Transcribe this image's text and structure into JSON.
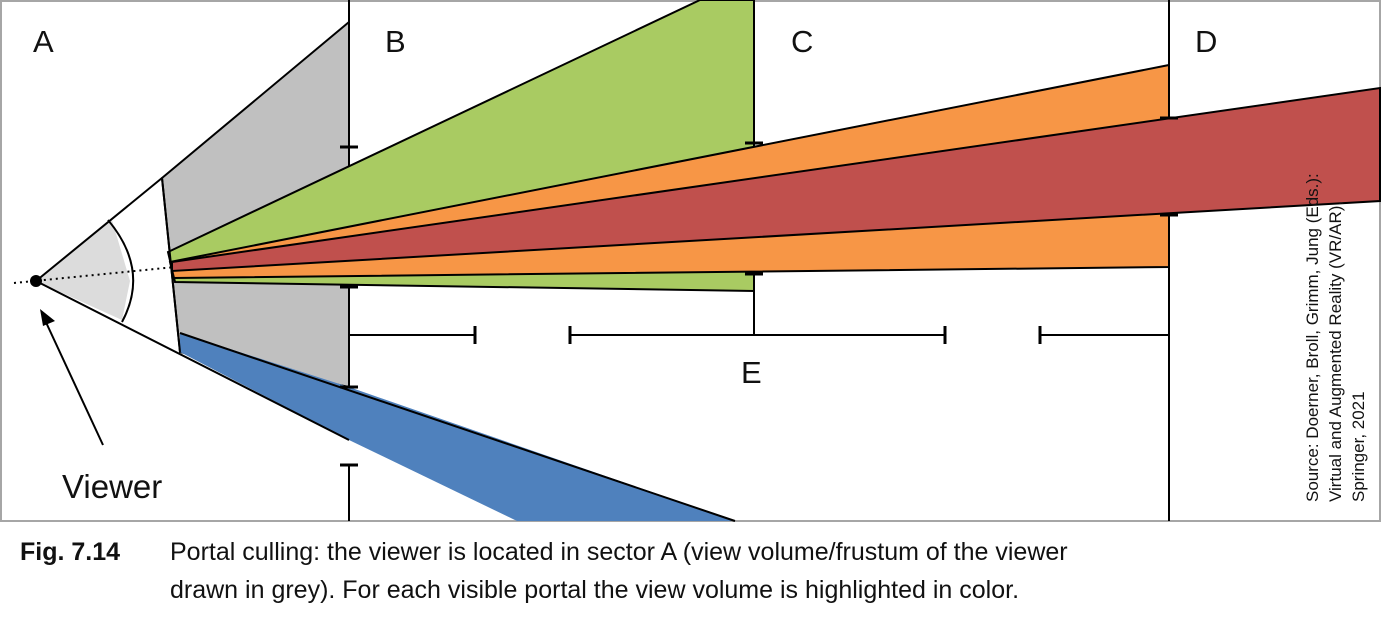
{
  "diagram": {
    "sectors": [
      "A",
      "B",
      "C",
      "D"
    ],
    "portal_interval_label": "E",
    "viewer_label": "Viewer",
    "source_lines": [
      "Source: Doerner, Broll, Grimm, Jung (Eds.):",
      "Virtual and Augmented Reality (VR/AR),",
      "Springer, 2021"
    ],
    "colors": {
      "view_volume": "#c0c0c0",
      "portal_b": "#a9cb62",
      "portal_c": "#f79646",
      "portal_d": "#c0504d",
      "portal_lower": "#4f81bd",
      "viewer_near": "#dcdcdc"
    }
  },
  "caption": {
    "figure_number": "Fig. 7.14",
    "text_line1": "Portal culling: the viewer is located in sector A (view volume/frustum of the viewer",
    "text_line2": "drawn in grey). For each visible portal the view volume is highlighted in color."
  }
}
